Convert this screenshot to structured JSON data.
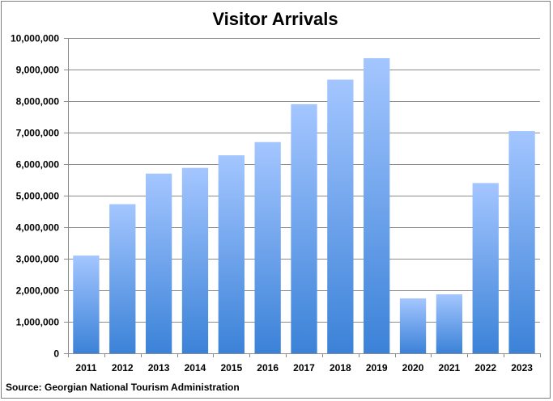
{
  "chart_data": {
    "type": "bar",
    "title": "Visitor Arrivals",
    "xlabel": "",
    "ylabel": "",
    "categories": [
      "2011",
      "2012",
      "2013",
      "2014",
      "2015",
      "2016",
      "2017",
      "2018",
      "2019",
      "2020",
      "2021",
      "2022",
      "2023"
    ],
    "values": [
      3100000,
      4730000,
      5700000,
      5880000,
      6280000,
      6700000,
      7900000,
      8680000,
      9360000,
      1740000,
      1870000,
      5400000,
      7050000
    ],
    "ylim": [
      0,
      10000000
    ],
    "yticks": [
      0,
      1000000,
      2000000,
      3000000,
      4000000,
      5000000,
      6000000,
      7000000,
      8000000,
      9000000,
      10000000
    ],
    "ytick_labels": [
      "0",
      "1,000,000",
      "2,000,000",
      "3,000,000",
      "4,000,000",
      "5,000,000",
      "6,000,000",
      "7,000,000",
      "8,000,000",
      "9,000,000",
      "10,000,000"
    ],
    "grid": true,
    "legend": "none",
    "bar_color_top": "#a4c6ff",
    "bar_color_bottom": "#3b82d8"
  },
  "source": "Source:  Georgian National Tourism Administration"
}
